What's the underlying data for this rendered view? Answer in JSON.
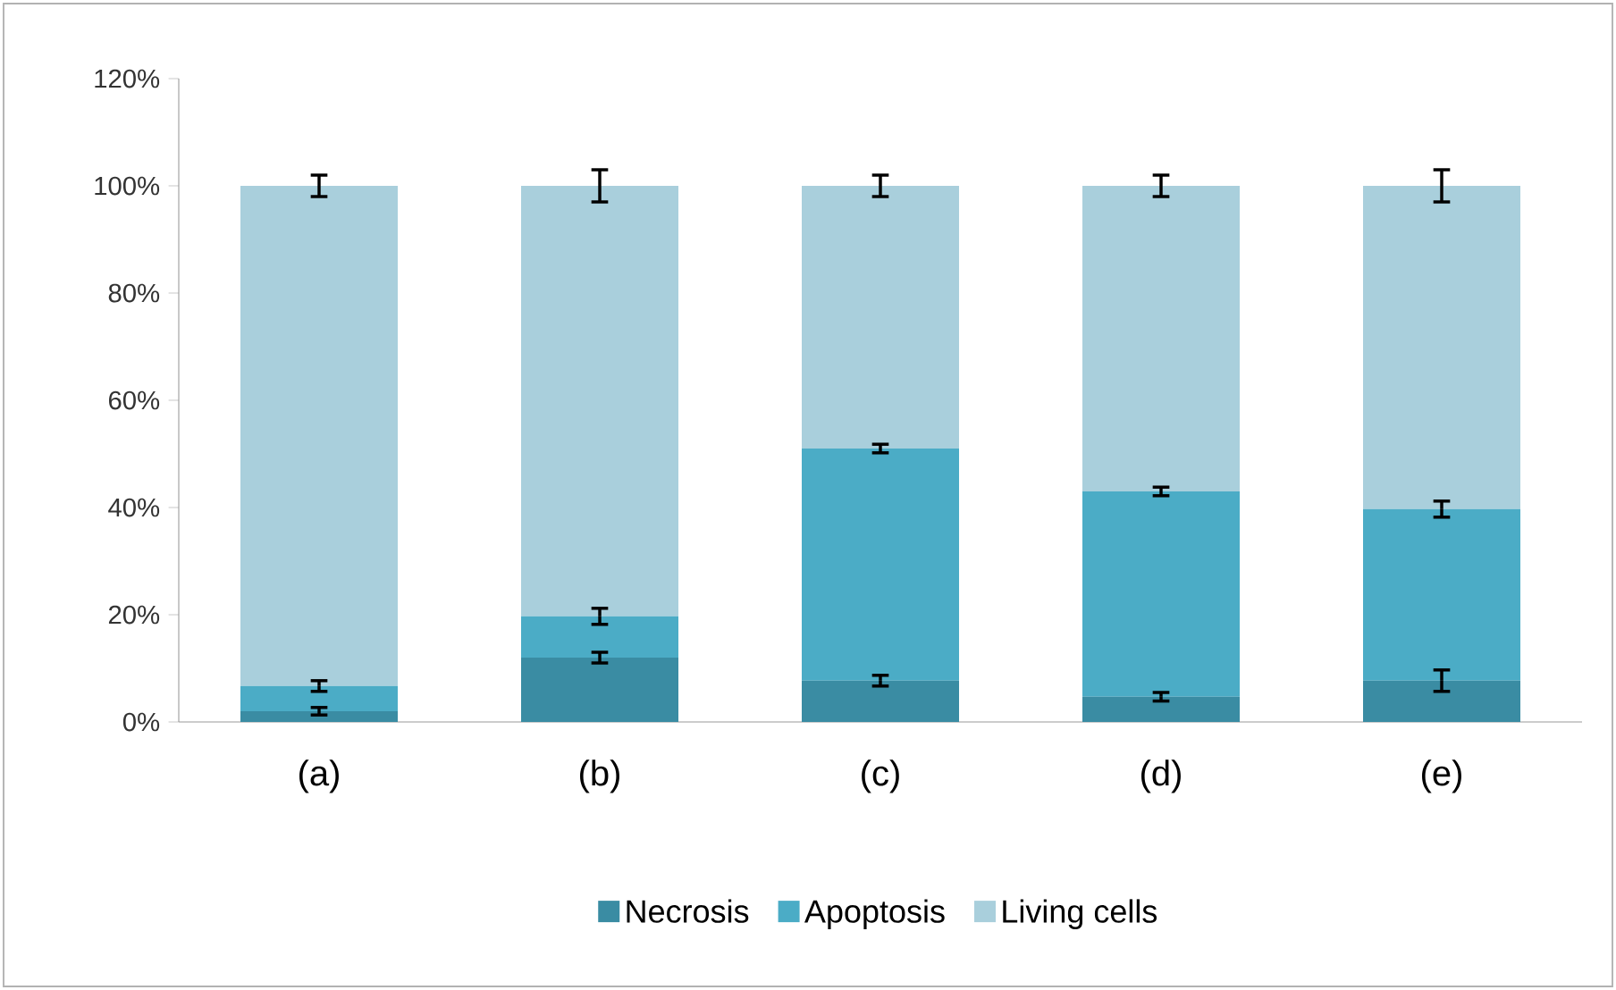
{
  "chart_data": {
    "type": "bar",
    "stacked": true,
    "categories": [
      "(a)",
      "(b)",
      "(c)",
      "(d)",
      "(e)"
    ],
    "series": [
      {
        "name": "Necrosis",
        "color": "#3a8ca3",
        "values": [
          2,
          12,
          7.7,
          4.7,
          7.7
        ],
        "errors": [
          0.7,
          1,
          1,
          0.8,
          2
        ]
      },
      {
        "name": "Apoptosis",
        "color": "#4bacc6",
        "values": [
          4.7,
          7.7,
          43.3,
          38.3,
          32
        ],
        "errors": [
          1,
          1.5,
          0.8,
          0.8,
          1.5
        ]
      },
      {
        "name": "Living cells",
        "color": "#a9cfdc",
        "values": [
          93.3,
          80.3,
          49,
          57,
          60.3
        ],
        "errors": [
          2,
          3,
          2,
          2,
          3
        ]
      }
    ],
    "ylim": [
      0,
      120
    ],
    "yticks": [
      {
        "value": 0,
        "label": "0%"
      },
      {
        "value": 20,
        "label": "20%"
      },
      {
        "value": 40,
        "label": "40%"
      },
      {
        "value": 60,
        "label": "60%"
      },
      {
        "value": 80,
        "label": "80%"
      },
      {
        "value": 100,
        "label": "100%"
      },
      {
        "value": 120,
        "label": "120%"
      }
    ],
    "grid": false,
    "legend": "bottom"
  }
}
